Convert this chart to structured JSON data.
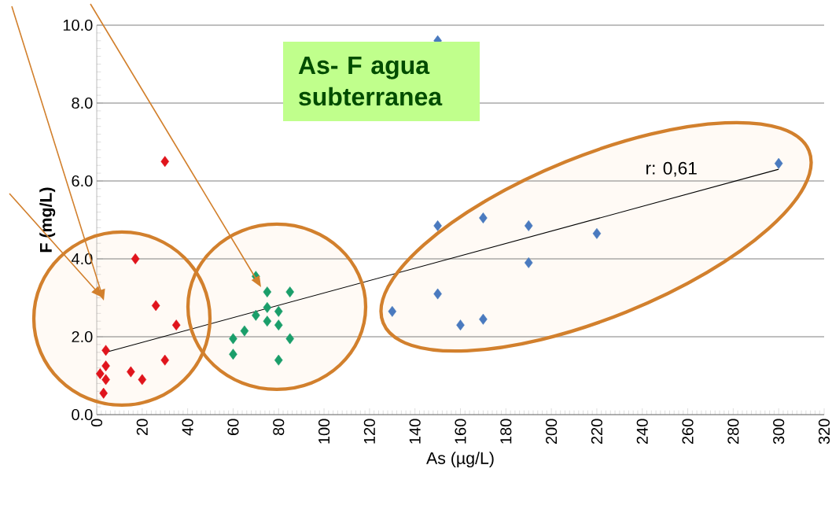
{
  "chart_data": {
    "type": "scatter",
    "title": "As- F agua subterranea",
    "xlabel": "As (µg/L)",
    "ylabel": "F (mg/L)",
    "xlim": [
      0,
      320
    ],
    "xticks": [
      0,
      20,
      40,
      60,
      80,
      100,
      120,
      140,
      160,
      180,
      200,
      220,
      240,
      260,
      280,
      300,
      320
    ],
    "ylim": [
      0,
      10
    ],
    "yticks": [
      {
        "value": 0,
        "label": "0.0"
      },
      {
        "value": 2,
        "label": "2.0"
      },
      {
        "value": 4,
        "label": "4.0"
      },
      {
        "value": 6,
        "label": "6.0"
      },
      {
        "value": 8,
        "label": "8.0"
      },
      {
        "value": 10,
        "label": "10.0"
      }
    ],
    "grid": "y",
    "marker": "diamond",
    "series": [
      {
        "color": "#e0141c",
        "x": [
          17,
          26,
          35,
          4,
          30,
          4,
          1.5,
          4,
          15,
          20,
          3,
          30
        ],
        "values": [
          4.0,
          2.8,
          2.3,
          1.65,
          1.4,
          1.25,
          1.05,
          0.9,
          1.1,
          0.9,
          0.55,
          6.5
        ]
      },
      {
        "color": "#1a9e6a",
        "x": [
          70,
          75,
          85,
          75,
          70,
          80,
          75,
          80,
          65,
          60,
          85,
          60,
          80
        ],
        "values": [
          3.55,
          3.15,
          3.15,
          2.75,
          2.55,
          2.65,
          2.4,
          2.3,
          2.15,
          1.95,
          1.95,
          1.55,
          1.4
        ]
      },
      {
        "color": "#4a7abf",
        "x": [
          300,
          150,
          170,
          190,
          220,
          190,
          150,
          130,
          160,
          170,
          150
        ],
        "values": [
          6.45,
          4.85,
          5.05,
          4.85,
          4.65,
          3.9,
          3.1,
          2.65,
          2.3,
          2.45,
          9.6
        ]
      },
      {
        "type": "line",
        "color": "#000000",
        "marker": "none",
        "x": [
          4,
          300
        ],
        "values": [
          1.6,
          6.3
        ]
      }
    ],
    "annotations": [
      "r: 0,61"
    ]
  }
}
